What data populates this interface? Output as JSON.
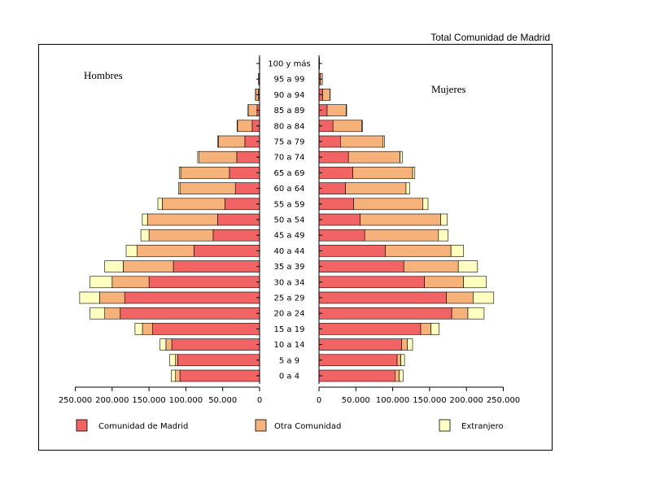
{
  "chart_data": {
    "type": "bar",
    "subtype": "population-pyramid",
    "title": "Total Comunidad de Madrid",
    "left_label": "Hombres",
    "right_label": "Mujeres",
    "categories": [
      "0 a 4",
      "5 a 9",
      "10 a 14",
      "15 a 19",
      "20 a 24",
      "25 a 29",
      "30 a 34",
      "35 a 39",
      "40 a 44",
      "45 a 49",
      "50 a 54",
      "55 a 59",
      "60 a 64",
      "65 a 69",
      "70 a 74",
      "75 a 79",
      "80 a 84",
      "85 a 89",
      "90 a 94",
      "95 a 99",
      "100 y más"
    ],
    "stacked": true,
    "series_colors": [
      "#f26363",
      "#f7b27a",
      "#ffffc0"
    ],
    "legend": [
      "Comunidad de Madrid",
      "Otra Comunidad",
      "Extranjero"
    ],
    "hombres": {
      "series": [
        {
          "name": "Comunidad de Madrid",
          "values": [
            108000,
            111000,
            119000,
            145000,
            189000,
            183000,
            150000,
            117000,
            89000,
            63000,
            57000,
            47000,
            33000,
            41000,
            31000,
            20000,
            10000,
            3500,
            1500,
            500,
            200
          ]
        },
        {
          "name": "Otra Comunidad",
          "values": [
            6000,
            3000,
            8000,
            14000,
            21000,
            34000,
            50000,
            68000,
            77000,
            87000,
            95000,
            85000,
            75000,
            66000,
            51000,
            36000,
            20000,
            12000,
            4000,
            1000,
            200
          ]
        },
        {
          "name": "Extranjero",
          "values": [
            6000,
            8000,
            8000,
            10000,
            20000,
            27000,
            30000,
            25000,
            15000,
            11000,
            7000,
            6000,
            2000,
            2000,
            2000,
            1000,
            500,
            300,
            100,
            0,
            0
          ]
        }
      ]
    },
    "mujeres": {
      "series": [
        {
          "name": "Comunidad de Madrid",
          "values": [
            103000,
            106000,
            112000,
            138000,
            180000,
            173000,
            143000,
            115000,
            90000,
            62000,
            56000,
            47000,
            36000,
            46000,
            40000,
            29000,
            19000,
            11000,
            5000,
            1500,
            300
          ]
        },
        {
          "name": "Otra Comunidad",
          "values": [
            6000,
            5000,
            8000,
            14000,
            22000,
            36000,
            53000,
            74000,
            89000,
            100000,
            109000,
            94000,
            82000,
            81000,
            70000,
            58000,
            39000,
            26000,
            10000,
            3000,
            300
          ]
        },
        {
          "name": "Extranjero",
          "values": [
            5000,
            5000,
            7000,
            11000,
            22000,
            28000,
            31000,
            26000,
            17000,
            13000,
            9000,
            7000,
            5000,
            3000,
            3000,
            2000,
            1000,
            500,
            200,
            0,
            0
          ]
        }
      ]
    },
    "x_ticks_left": [
      "250.000",
      "200.000",
      "150.000",
      "100.000",
      "50.000",
      "0"
    ],
    "x_ticks_right": [
      "0",
      "50.000",
      "100.000",
      "150.000",
      "200.000",
      "250.000"
    ],
    "xlim": [
      0,
      250000
    ],
    "grid": false
  }
}
